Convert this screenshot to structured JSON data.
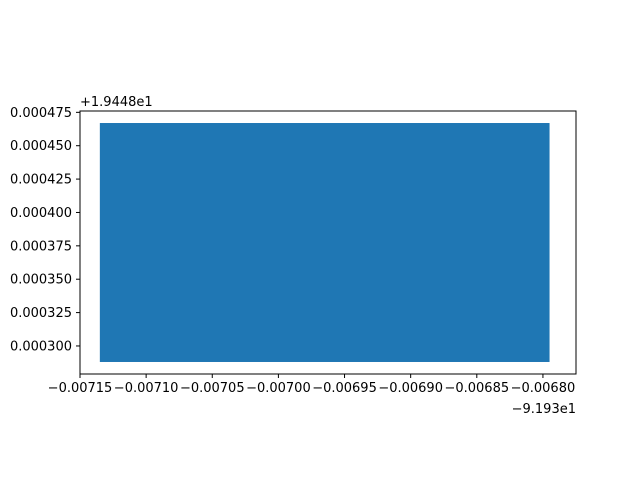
{
  "chart_data": {
    "type": "area",
    "title": "",
    "xlabel": "",
    "ylabel": "",
    "grid": false,
    "legend": "none",
    "x_offset_label": "−9.193e1",
    "y_offset_label": "+1.9448e1",
    "x_offset": -91.93,
    "y_offset": 19.448,
    "xlim": [
      -0.00715,
      -0.006775
    ],
    "ylim": [
      0.000279,
      0.000476
    ],
    "x_ticks": [
      -0.00715,
      -0.0071,
      -0.00705,
      -0.007,
      -0.00695,
      -0.0069,
      -0.00685,
      -0.0068
    ],
    "x_tick_labels": [
      "−0.00715",
      "−0.00710",
      "−0.00705",
      "−0.00700",
      "−0.00695",
      "−0.00690",
      "−0.00685",
      "−0.00680"
    ],
    "y_ticks": [
      0.0003,
      0.000325,
      0.00035,
      0.000375,
      0.0004,
      0.000425,
      0.00045,
      0.000475
    ],
    "y_tick_labels": [
      "0.000300",
      "0.000325",
      "0.000350",
      "0.000375",
      "0.000400",
      "0.000425",
      "0.000450",
      "0.000475"
    ],
    "shape": {
      "x_range": [
        -0.007135,
        -0.006795
      ],
      "y_range": [
        0.000288,
        0.000467
      ],
      "color": "#1f77b4"
    }
  }
}
